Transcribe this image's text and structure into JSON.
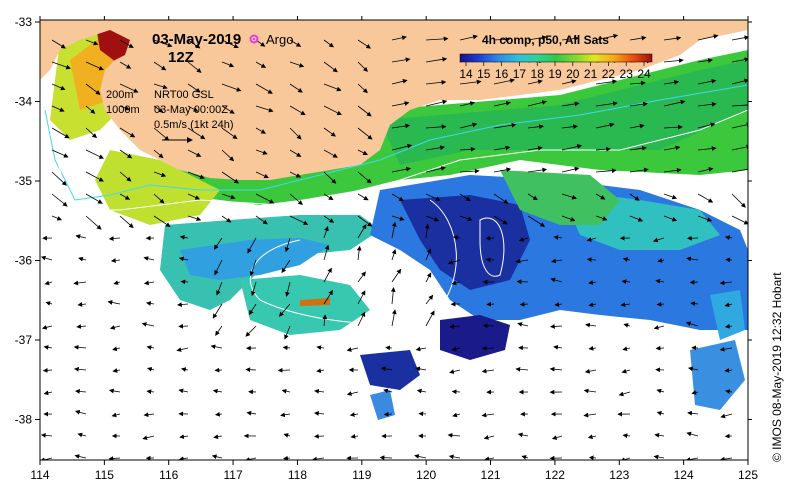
{
  "date_title": "03-May-2019",
  "time_title": "12Z",
  "argo_label": "Argo",
  "depth_200": "200m",
  "depth_1000": "1000m",
  "product_name": "NRT00 GSL",
  "product_time": "03-May 00:00Z",
  "scale_label": "0.5m/s (1kt 24h)",
  "colorbar_title": "4h comp, p50, All Sats",
  "colorbar_ticks": [
    "14",
    "15",
    "16",
    "17",
    "18",
    "19",
    "20",
    "21",
    "22",
    "23",
    "24"
  ],
  "credit": "© IMOS 08-May-2019 12:32 Hobart",
  "x_ticks": [
    "114",
    "115",
    "116",
    "117",
    "118",
    "119",
    "120",
    "121",
    "122",
    "123",
    "124",
    "125"
  ],
  "y_ticks": [
    "-33",
    "-34",
    "-35",
    "-36",
    "-37",
    "-38"
  ],
  "colors": {
    "land": "#f8c89a",
    "argo": "#e040e0",
    "contour_200": "#40d8f0",
    "contour_1000": "#ffffff"
  }
}
